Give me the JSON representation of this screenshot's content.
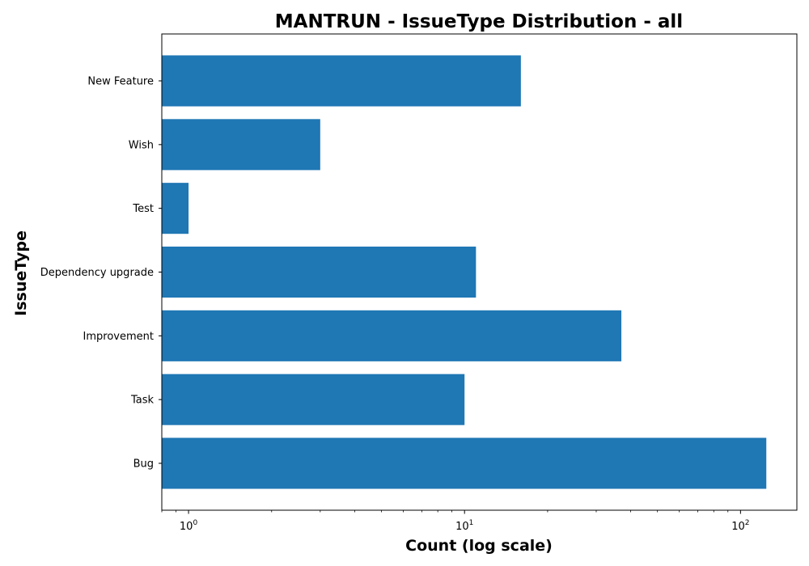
{
  "chart_data": {
    "type": "bar",
    "orientation": "horizontal",
    "title": "MANTRUN - IssueType Distribution - all",
    "xlabel": "Count (log scale)",
    "ylabel": "IssueType",
    "x_scale": "log",
    "xlim": [
      0.8,
      160
    ],
    "categories": [
      "Bug",
      "Task",
      "Improvement",
      "Dependency upgrade",
      "Test",
      "Wish",
      "New Feature"
    ],
    "values": [
      124,
      10,
      37,
      11,
      1,
      3,
      16
    ],
    "x_ticks": [
      {
        "base": "10",
        "exp": "0",
        "value": 1
      },
      {
        "base": "10",
        "exp": "1",
        "value": 10
      },
      {
        "base": "10",
        "exp": "2",
        "value": 100
      }
    ],
    "bar_color": "#1f77b4",
    "grid": false,
    "legend": "none"
  }
}
